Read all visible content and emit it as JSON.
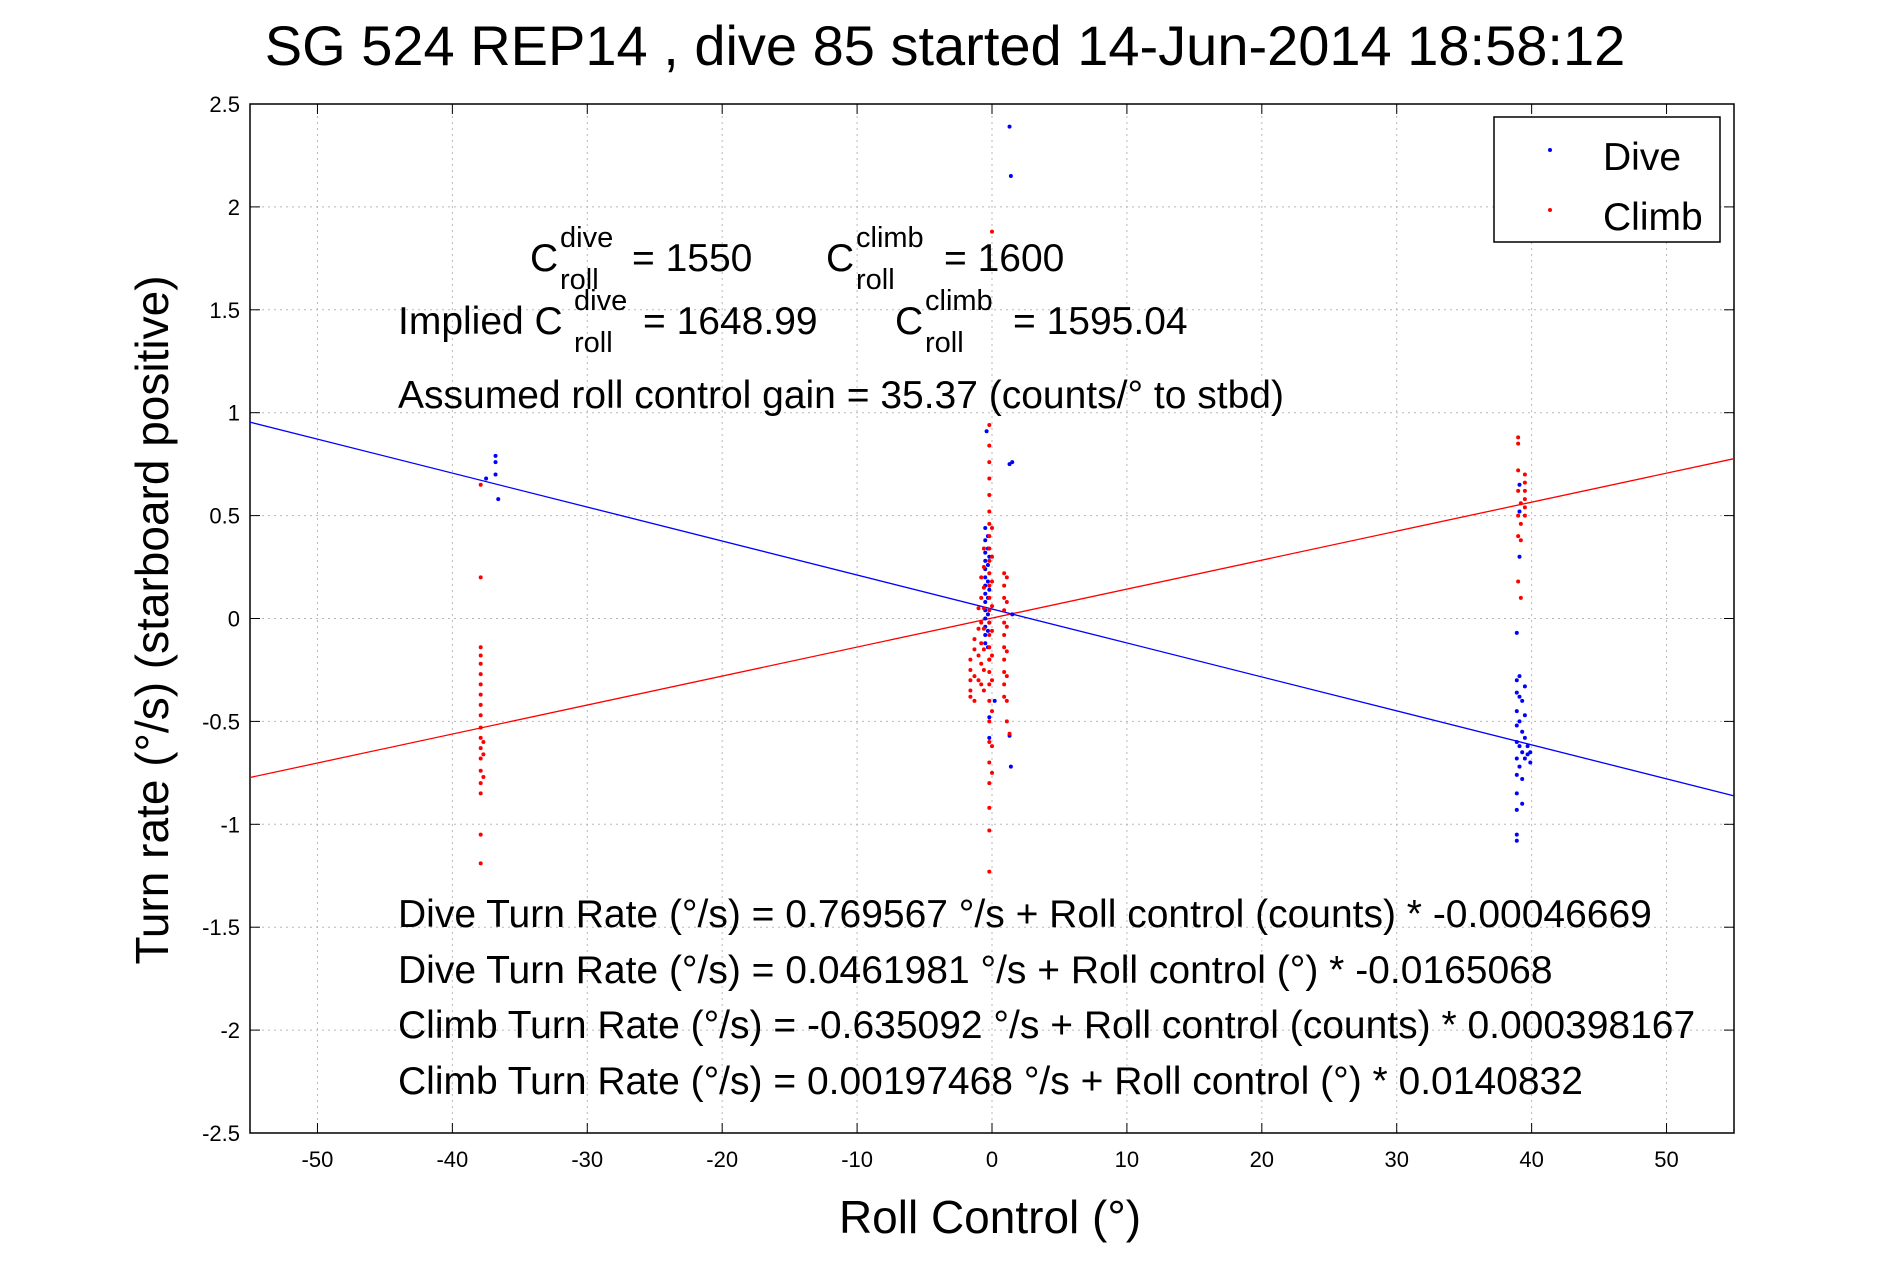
{
  "chart_data": {
    "type": "scatter",
    "title": "SG 524   REP14  , dive 85 started 14-Jun-2014 18:58:12",
    "xlabel": "Roll Control (°)",
    "ylabel": "Turn rate (°/s)  (starboard positive)",
    "xlim": [
      -55,
      55
    ],
    "ylim": [
      -2.5,
      2.5
    ],
    "xticks": [
      -50,
      -40,
      -30,
      -20,
      -10,
      0,
      10,
      20,
      30,
      40,
      50
    ],
    "yticks": [
      -2.5,
      -2,
      -1.5,
      -1,
      -0.5,
      0,
      0.5,
      1,
      1.5,
      2,
      2.5
    ],
    "xtick_labels": [
      "-50",
      "-40",
      "-30",
      "-20",
      "-10",
      "0",
      "10",
      "20",
      "30",
      "40",
      "50"
    ],
    "ytick_labels": [
      "-2.5",
      "-2",
      "-1.5",
      "-1",
      "-0.5",
      "0",
      "0.5",
      "1",
      "1.5",
      "2",
      "2.5"
    ],
    "grid": true,
    "legend_position": "top-right",
    "series": [
      {
        "name": "Dive",
        "color": "#0000ff",
        "marker": "point",
        "points": [
          [
            -37.5,
            0.68
          ],
          [
            -36.8,
            0.79
          ],
          [
            -36.8,
            0.76
          ],
          [
            -36.8,
            0.7
          ],
          [
            -36.6,
            0.58
          ],
          [
            -0.4,
            0.91
          ],
          [
            -0.5,
            0.44
          ],
          [
            -0.5,
            0.38
          ],
          [
            -0.5,
            0.32
          ],
          [
            -0.5,
            0.28
          ],
          [
            -0.5,
            0.24
          ],
          [
            -0.5,
            0.2
          ],
          [
            -0.5,
            0.16
          ],
          [
            -0.5,
            0.12
          ],
          [
            -0.5,
            0.08
          ],
          [
            -0.5,
            0.04
          ],
          [
            -0.5,
            0.0
          ],
          [
            -0.5,
            -0.04
          ],
          [
            -0.5,
            -0.08
          ],
          [
            -0.5,
            -0.12
          ],
          [
            -0.3,
            0.4
          ],
          [
            -0.3,
            0.34
          ],
          [
            -0.3,
            0.26
          ],
          [
            -0.3,
            0.18
          ],
          [
            -0.3,
            0.1
          ],
          [
            -0.3,
            0.02
          ],
          [
            -0.3,
            -0.06
          ],
          [
            -0.3,
            -0.14
          ],
          [
            -0.2,
            0.3
          ],
          [
            -0.2,
            0.14
          ],
          [
            -0.2,
            -0.02
          ],
          [
            -0.2,
            -0.2
          ],
          [
            -0.2,
            -0.58
          ],
          [
            -0.2,
            -0.48
          ],
          [
            1.3,
            2.39
          ],
          [
            1.4,
            2.15
          ],
          [
            1.3,
            0.75
          ],
          [
            1.5,
            0.76
          ],
          [
            1.5,
            0.02
          ],
          [
            1.3,
            -0.57
          ],
          [
            1.4,
            -0.72
          ],
          [
            0.2,
            -0.4
          ],
          [
            38.9,
            -0.07
          ],
          [
            38.9,
            -0.3
          ],
          [
            38.9,
            -0.36
          ],
          [
            38.9,
            -0.45
          ],
          [
            38.9,
            -0.52
          ],
          [
            38.9,
            -0.6
          ],
          [
            38.9,
            -0.68
          ],
          [
            38.9,
            -0.76
          ],
          [
            38.9,
            -0.85
          ],
          [
            38.9,
            -0.93
          ],
          [
            38.9,
            -1.05
          ],
          [
            38.9,
            -1.08
          ],
          [
            39.1,
            0.65
          ],
          [
            39.1,
            0.52
          ],
          [
            39.1,
            0.3
          ],
          [
            39.1,
            -0.28
          ],
          [
            39.1,
            -0.38
          ],
          [
            39.1,
            -0.5
          ],
          [
            39.1,
            -0.62
          ],
          [
            39.1,
            -0.72
          ],
          [
            39.3,
            -0.4
          ],
          [
            39.3,
            -0.55
          ],
          [
            39.3,
            -0.65
          ],
          [
            39.3,
            -0.78
          ],
          [
            39.3,
            -0.9
          ],
          [
            39.5,
            -0.33
          ],
          [
            39.5,
            -0.47
          ],
          [
            39.5,
            -0.58
          ],
          [
            39.5,
            -0.68
          ],
          [
            39.7,
            -0.62
          ],
          [
            39.7,
            -0.66
          ],
          [
            39.9,
            -0.65
          ],
          [
            39.9,
            -0.7
          ]
        ]
      },
      {
        "name": "Climb",
        "color": "#ff0000",
        "marker": "point",
        "points": [
          [
            -37.9,
            0.65
          ],
          [
            -37.9,
            0.2
          ],
          [
            -37.9,
            -0.14
          ],
          [
            -37.9,
            -0.18
          ],
          [
            -37.9,
            -0.22
          ],
          [
            -37.9,
            -0.27
          ],
          [
            -37.9,
            -0.32
          ],
          [
            -37.9,
            -0.37
          ],
          [
            -37.9,
            -0.42
          ],
          [
            -37.9,
            -0.47
          ],
          [
            -37.9,
            -0.53
          ],
          [
            -37.9,
            -0.58
          ],
          [
            -37.9,
            -0.63
          ],
          [
            -37.9,
            -0.68
          ],
          [
            -37.9,
            -0.74
          ],
          [
            -37.9,
            -0.8
          ],
          [
            -37.9,
            -0.85
          ],
          [
            -37.9,
            -1.05
          ],
          [
            -37.9,
            -1.19
          ],
          [
            -37.7,
            -0.6
          ],
          [
            -37.7,
            -0.66
          ],
          [
            -37.7,
            -0.77
          ],
          [
            -1.6,
            -0.2
          ],
          [
            -1.6,
            -0.25
          ],
          [
            -1.6,
            -0.3
          ],
          [
            -1.6,
            -0.35
          ],
          [
            -1.6,
            -0.38
          ],
          [
            -1.3,
            -0.1
          ],
          [
            -1.3,
            -0.15
          ],
          [
            -1.3,
            -0.28
          ],
          [
            -1.3,
            -0.4
          ],
          [
            -1.0,
            0.05
          ],
          [
            -1.0,
            -0.05
          ],
          [
            -1.0,
            -0.18
          ],
          [
            -1.0,
            -0.3
          ],
          [
            -0.8,
            0.2
          ],
          [
            -0.8,
            0.1
          ],
          [
            -0.8,
            -0.02
          ],
          [
            -0.8,
            -0.12
          ],
          [
            -0.8,
            -0.22
          ],
          [
            -0.8,
            -0.32
          ],
          [
            -0.6,
            0.34
          ],
          [
            -0.6,
            0.25
          ],
          [
            -0.6,
            0.15
          ],
          [
            -0.6,
            0.05
          ],
          [
            -0.6,
            -0.05
          ],
          [
            -0.6,
            -0.15
          ],
          [
            -0.6,
            -0.25
          ],
          [
            -0.6,
            -0.35
          ],
          [
            -0.2,
            0.94
          ],
          [
            -0.2,
            0.84
          ],
          [
            -0.2,
            0.76
          ],
          [
            -0.2,
            0.68
          ],
          [
            -0.2,
            0.6
          ],
          [
            -0.2,
            0.52
          ],
          [
            -0.2,
            0.46
          ],
          [
            -0.2,
            0.4
          ],
          [
            -0.2,
            0.34
          ],
          [
            -0.2,
            0.28
          ],
          [
            -0.2,
            0.22
          ],
          [
            -0.2,
            0.16
          ],
          [
            -0.2,
            0.1
          ],
          [
            -0.2,
            0.04
          ],
          [
            -0.2,
            -0.02
          ],
          [
            -0.2,
            -0.08
          ],
          [
            -0.2,
            -0.14
          ],
          [
            -0.2,
            -0.2
          ],
          [
            -0.2,
            -0.26
          ],
          [
            -0.2,
            -0.32
          ],
          [
            -0.2,
            -0.4
          ],
          [
            -0.2,
            -0.5
          ],
          [
            -0.2,
            -0.6
          ],
          [
            -0.2,
            -0.7
          ],
          [
            -0.2,
            -0.8
          ],
          [
            -0.2,
            -0.92
          ],
          [
            -0.2,
            -1.03
          ],
          [
            -0.2,
            -1.23
          ],
          [
            0.0,
            1.88
          ],
          [
            0.0,
            0.44
          ],
          [
            0.0,
            0.3
          ],
          [
            0.0,
            0.18
          ],
          [
            0.0,
            0.06
          ],
          [
            0.0,
            -0.06
          ],
          [
            0.0,
            -0.18
          ],
          [
            0.0,
            -0.3
          ],
          [
            0.0,
            -0.45
          ],
          [
            0.0,
            -0.62
          ],
          [
            0.0,
            -0.75
          ],
          [
            0.9,
            0.22
          ],
          [
            0.9,
            0.16
          ],
          [
            0.9,
            0.1
          ],
          [
            0.9,
            0.04
          ],
          [
            0.9,
            -0.02
          ],
          [
            0.9,
            -0.08
          ],
          [
            0.9,
            -0.14
          ],
          [
            0.9,
            -0.2
          ],
          [
            0.9,
            -0.26
          ],
          [
            0.9,
            -0.32
          ],
          [
            0.9,
            -0.38
          ],
          [
            1.1,
            0.2
          ],
          [
            1.1,
            0.08
          ],
          [
            1.1,
            -0.04
          ],
          [
            1.1,
            -0.16
          ],
          [
            1.1,
            -0.28
          ],
          [
            1.1,
            -0.4
          ],
          [
            1.1,
            -0.5
          ],
          [
            1.3,
            -0.56
          ],
          [
            39.0,
            0.88
          ],
          [
            39.0,
            0.85
          ],
          [
            39.0,
            0.72
          ],
          [
            39.0,
            0.62
          ],
          [
            39.0,
            0.5
          ],
          [
            39.0,
            0.4
          ],
          [
            39.0,
            0.18
          ],
          [
            39.2,
            0.56
          ],
          [
            39.2,
            0.46
          ],
          [
            39.2,
            0.38
          ],
          [
            39.2,
            0.1
          ],
          [
            39.5,
            0.7
          ],
          [
            39.5,
            0.66
          ],
          [
            39.5,
            0.62
          ],
          [
            39.5,
            0.58
          ],
          [
            39.5,
            0.54
          ],
          [
            39.5,
            0.5
          ]
        ]
      }
    ],
    "fit_lines": [
      {
        "name": "Dive fit",
        "color": "#0000ff",
        "intercept": 0.0461981,
        "slope": -0.0165068
      },
      {
        "name": "Climb fit",
        "color": "#ff0000",
        "intercept": 0.00197468,
        "slope": 0.0140832
      }
    ],
    "annotations": {
      "croll_sym": "C",
      "croll_sub": "roll",
      "dive_sup": "dive",
      "climb_sup": "climb",
      "croll_dive_value": "= 1550",
      "croll_climb_value": "= 1600",
      "implied_prefix": "Implied C",
      "implied_dive_value": "= 1648.99",
      "implied_climb_value": "= 1595.04",
      "gain": "Assumed roll control gain = 35.37 (counts/° to stbd)",
      "eq1": "Dive Turn Rate (°/s) = 0.769567 °/s + Roll control (counts) * -0.00046669",
      "eq2": "Dive Turn Rate (°/s) = 0.0461981 °/s + Roll control (°) * -0.0165068",
      "eq3": "Climb Turn Rate (°/s) = -0.635092 °/s + Roll control (counts) * 0.000398167",
      "eq4": "Climb Turn Rate (°/s) = 0.00197468 °/s + Roll control (°) * 0.0140832"
    }
  }
}
